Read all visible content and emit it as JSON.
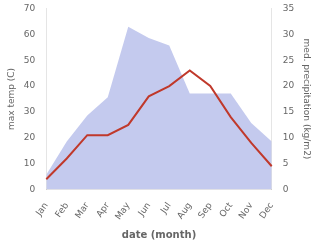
{
  "chart_data": {
    "type": "line",
    "categories": [
      "Jan",
      "Feb",
      "Mar",
      "Apr",
      "May",
      "Jun",
      "Jul",
      "Aug",
      "Sep",
      "Oct",
      "Nov",
      "Dec"
    ],
    "series": [
      {
        "type": "area",
        "color": "#b0b8e8",
        "values": [
          5.7,
          18.6,
          28.6,
          35.7,
          62.9,
          58.6,
          55.7,
          37.1,
          37.1,
          37.1,
          25.7,
          18.6
        ]
      },
      {
        "type": "line",
        "color": "#c0392b",
        "values": [
          4,
          12,
          21,
          21,
          25,
          36,
          40,
          46,
          40,
          28,
          18,
          9
        ]
      }
    ],
    "xlabel": "date (month)",
    "ylabel": "max temp (C)",
    "y2label": "med. precipitation (kg/m2)",
    "ylim": [
      0,
      70
    ],
    "yticks": [
      0,
      10,
      20,
      30,
      40,
      50,
      60,
      70
    ],
    "y2lim": [
      0,
      35
    ],
    "y2ticks": [
      0,
      5,
      10,
      15,
      20,
      25,
      30,
      35
    ],
    "grid": false
  }
}
